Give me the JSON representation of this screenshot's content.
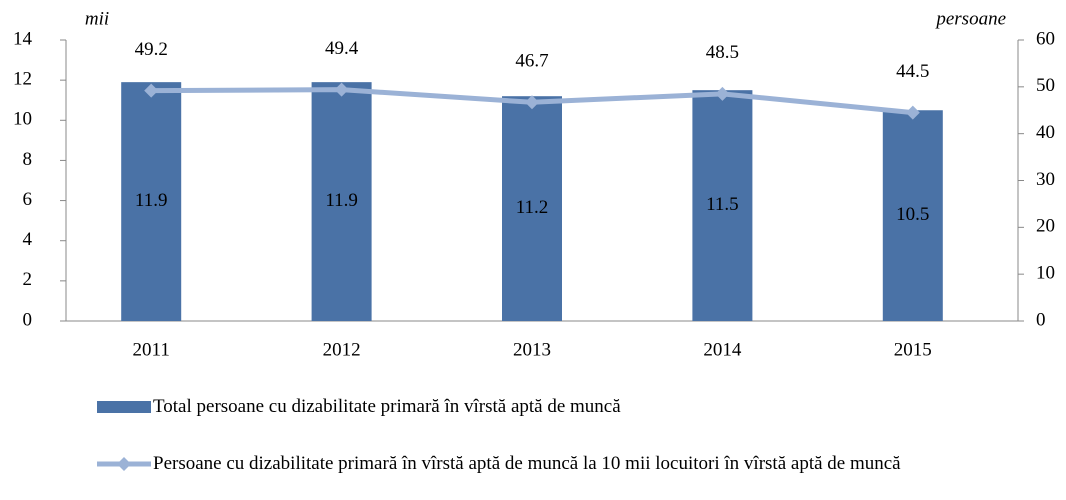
{
  "chart_data": {
    "type": "bar_line",
    "y_label": "mii",
    "y2_label": "persoane",
    "categories": [
      "2011",
      "2012",
      "2013",
      "2014",
      "2015"
    ],
    "series": [
      {
        "name": "Total persoane  cu dizabilitate primară în vîrstă aptă de muncă",
        "type": "bar",
        "color": "#4a72a6",
        "values": [
          11.9,
          11.9,
          11.2,
          11.5,
          10.5
        ]
      },
      {
        "name": "Persoane cu dizabilitate primară în vîrstă aptă de muncă la 10 mii locuitori în vîrstă aptă de muncă",
        "type": "line",
        "axis": "y2",
        "color": "#9bb2d6",
        "values": [
          49.2,
          49.4,
          46.7,
          48.5,
          44.5
        ]
      }
    ],
    "ylim": [
      0,
      14
    ],
    "yticks": [
      0,
      2,
      4,
      6,
      8,
      10,
      12,
      14
    ],
    "y2lim": [
      0,
      60
    ],
    "y2ticks": [
      0,
      10,
      20,
      30,
      40,
      50,
      60
    ]
  }
}
